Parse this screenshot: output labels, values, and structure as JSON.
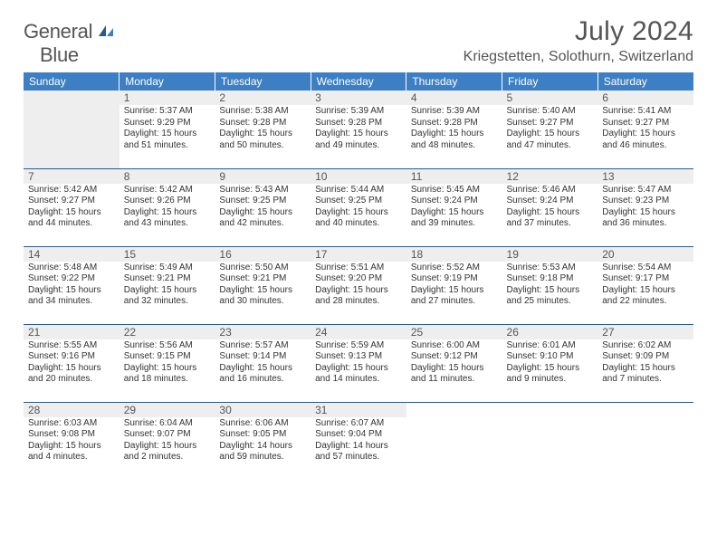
{
  "header": {
    "logo_top": "General",
    "logo_bottom": "Blue",
    "month_title": "July 2024",
    "location": "Kriegstetten, Solothurn, Switzerland"
  },
  "colors": {
    "header_bg": "#3c7fc4",
    "border": "#2a5a8a",
    "daynum_bg": "#eeeeee",
    "text": "#333333",
    "title": "#555555"
  },
  "days_of_week": [
    "Sunday",
    "Monday",
    "Tuesday",
    "Wednesday",
    "Thursday",
    "Friday",
    "Saturday"
  ],
  "first_day_col": 1,
  "days": [
    {
      "n": 1,
      "sr": "5:37 AM",
      "ss": "9:29 PM",
      "dl": "15 hours and 51 minutes."
    },
    {
      "n": 2,
      "sr": "5:38 AM",
      "ss": "9:28 PM",
      "dl": "15 hours and 50 minutes."
    },
    {
      "n": 3,
      "sr": "5:39 AM",
      "ss": "9:28 PM",
      "dl": "15 hours and 49 minutes."
    },
    {
      "n": 4,
      "sr": "5:39 AM",
      "ss": "9:28 PM",
      "dl": "15 hours and 48 minutes."
    },
    {
      "n": 5,
      "sr": "5:40 AM",
      "ss": "9:27 PM",
      "dl": "15 hours and 47 minutes."
    },
    {
      "n": 6,
      "sr": "5:41 AM",
      "ss": "9:27 PM",
      "dl": "15 hours and 46 minutes."
    },
    {
      "n": 7,
      "sr": "5:42 AM",
      "ss": "9:27 PM",
      "dl": "15 hours and 44 minutes."
    },
    {
      "n": 8,
      "sr": "5:42 AM",
      "ss": "9:26 PM",
      "dl": "15 hours and 43 minutes."
    },
    {
      "n": 9,
      "sr": "5:43 AM",
      "ss": "9:25 PM",
      "dl": "15 hours and 42 minutes."
    },
    {
      "n": 10,
      "sr": "5:44 AM",
      "ss": "9:25 PM",
      "dl": "15 hours and 40 minutes."
    },
    {
      "n": 11,
      "sr": "5:45 AM",
      "ss": "9:24 PM",
      "dl": "15 hours and 39 minutes."
    },
    {
      "n": 12,
      "sr": "5:46 AM",
      "ss": "9:24 PM",
      "dl": "15 hours and 37 minutes."
    },
    {
      "n": 13,
      "sr": "5:47 AM",
      "ss": "9:23 PM",
      "dl": "15 hours and 36 minutes."
    },
    {
      "n": 14,
      "sr": "5:48 AM",
      "ss": "9:22 PM",
      "dl": "15 hours and 34 minutes."
    },
    {
      "n": 15,
      "sr": "5:49 AM",
      "ss": "9:21 PM",
      "dl": "15 hours and 32 minutes."
    },
    {
      "n": 16,
      "sr": "5:50 AM",
      "ss": "9:21 PM",
      "dl": "15 hours and 30 minutes."
    },
    {
      "n": 17,
      "sr": "5:51 AM",
      "ss": "9:20 PM",
      "dl": "15 hours and 28 minutes."
    },
    {
      "n": 18,
      "sr": "5:52 AM",
      "ss": "9:19 PM",
      "dl": "15 hours and 27 minutes."
    },
    {
      "n": 19,
      "sr": "5:53 AM",
      "ss": "9:18 PM",
      "dl": "15 hours and 25 minutes."
    },
    {
      "n": 20,
      "sr": "5:54 AM",
      "ss": "9:17 PM",
      "dl": "15 hours and 22 minutes."
    },
    {
      "n": 21,
      "sr": "5:55 AM",
      "ss": "9:16 PM",
      "dl": "15 hours and 20 minutes."
    },
    {
      "n": 22,
      "sr": "5:56 AM",
      "ss": "9:15 PM",
      "dl": "15 hours and 18 minutes."
    },
    {
      "n": 23,
      "sr": "5:57 AM",
      "ss": "9:14 PM",
      "dl": "15 hours and 16 minutes."
    },
    {
      "n": 24,
      "sr": "5:59 AM",
      "ss": "9:13 PM",
      "dl": "15 hours and 14 minutes."
    },
    {
      "n": 25,
      "sr": "6:00 AM",
      "ss": "9:12 PM",
      "dl": "15 hours and 11 minutes."
    },
    {
      "n": 26,
      "sr": "6:01 AM",
      "ss": "9:10 PM",
      "dl": "15 hours and 9 minutes."
    },
    {
      "n": 27,
      "sr": "6:02 AM",
      "ss": "9:09 PM",
      "dl": "15 hours and 7 minutes."
    },
    {
      "n": 28,
      "sr": "6:03 AM",
      "ss": "9:08 PM",
      "dl": "15 hours and 4 minutes."
    },
    {
      "n": 29,
      "sr": "6:04 AM",
      "ss": "9:07 PM",
      "dl": "15 hours and 2 minutes."
    },
    {
      "n": 30,
      "sr": "6:06 AM",
      "ss": "9:05 PM",
      "dl": "14 hours and 59 minutes."
    },
    {
      "n": 31,
      "sr": "6:07 AM",
      "ss": "9:04 PM",
      "dl": "14 hours and 57 minutes."
    }
  ],
  "labels": {
    "sunrise": "Sunrise:",
    "sunset": "Sunset:",
    "daylight": "Daylight:"
  }
}
